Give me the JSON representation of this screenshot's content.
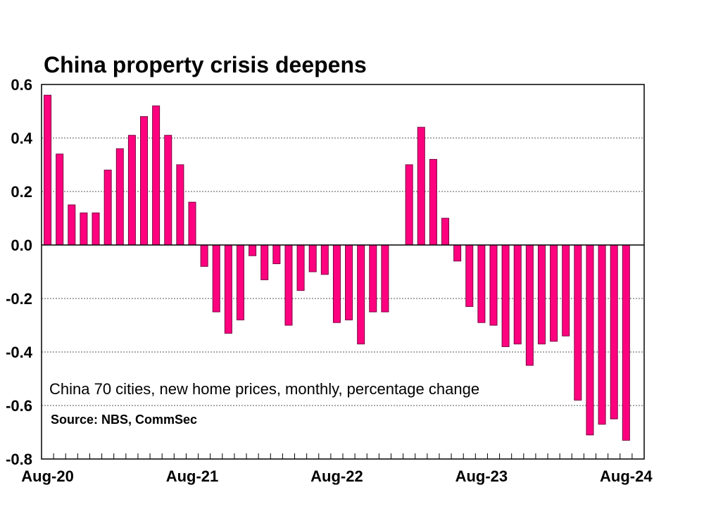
{
  "chart_data": {
    "type": "bar",
    "title": "China property crisis deepens",
    "annotation": "China 70 cities, new home prices, monthly, percentage change",
    "source": "Source: NBS, CommSec",
    "xlabel": "",
    "ylabel": "",
    "ylim": [
      -0.8,
      0.6
    ],
    "yticks": [
      "0.6",
      "0.4",
      "0.2",
      "0.0",
      "-0.2",
      "-0.4",
      "-0.6",
      "-0.8"
    ],
    "ytick_values": [
      0.6,
      0.4,
      0.2,
      0.0,
      -0.2,
      -0.4,
      -0.6,
      -0.8
    ],
    "grid": true,
    "bar_color": "#ff007f",
    "bar_edge_color": "#7a0040",
    "xtick_labels": [
      {
        "label": "Aug-20",
        "index": 0
      },
      {
        "label": "Aug-21",
        "index": 12
      },
      {
        "label": "Aug-22",
        "index": 24
      },
      {
        "label": "Aug-23",
        "index": 36
      },
      {
        "label": "Aug-24",
        "index": 48
      }
    ],
    "total_slots": 50,
    "categories": [
      "Aug-20",
      "Sep-20",
      "Oct-20",
      "Nov-20",
      "Dec-20",
      "Jan-21",
      "Feb-21",
      "Mar-21",
      "Apr-21",
      "May-21",
      "Jun-21",
      "Jul-21",
      "Aug-21",
      "Sep-21",
      "Oct-21",
      "Nov-21",
      "Dec-21",
      "Jan-22",
      "Feb-22",
      "Mar-22",
      "Apr-22",
      "May-22",
      "Jun-22",
      "Jul-22",
      "Aug-22",
      "Sep-22",
      "Oct-22",
      "Nov-22",
      "Dec-22",
      "Jan-23",
      "Feb-23",
      "Mar-23",
      "Apr-23",
      "May-23",
      "Jun-23",
      "Jul-23",
      "Aug-23",
      "Sep-23",
      "Oct-23",
      "Nov-23",
      "Dec-23",
      "Jan-24",
      "Feb-24",
      "Mar-24",
      "Apr-24",
      "May-24",
      "Jun-24",
      "Jul-24",
      "Aug-24"
    ],
    "values": [
      0.56,
      0.34,
      0.15,
      0.12,
      0.12,
      0.28,
      0.36,
      0.41,
      0.48,
      0.52,
      0.41,
      0.3,
      0.16,
      -0.08,
      -0.25,
      -0.33,
      -0.28,
      -0.04,
      -0.13,
      -0.07,
      -0.3,
      -0.17,
      -0.1,
      -0.11,
      -0.29,
      -0.28,
      -0.37,
      -0.25,
      -0.25,
      null,
      0.3,
      0.44,
      0.32,
      0.1,
      -0.06,
      -0.23,
      -0.29,
      -0.3,
      -0.38,
      -0.37,
      -0.45,
      -0.37,
      -0.36,
      -0.34,
      -0.58,
      -0.71,
      -0.67,
      -0.65,
      -0.73
    ]
  }
}
